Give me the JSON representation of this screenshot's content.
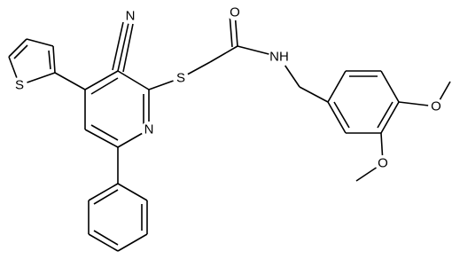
{
  "atoms": [
    "N",
    "S",
    "S",
    "N",
    "O",
    "NH",
    "O",
    "O"
  ]
}
